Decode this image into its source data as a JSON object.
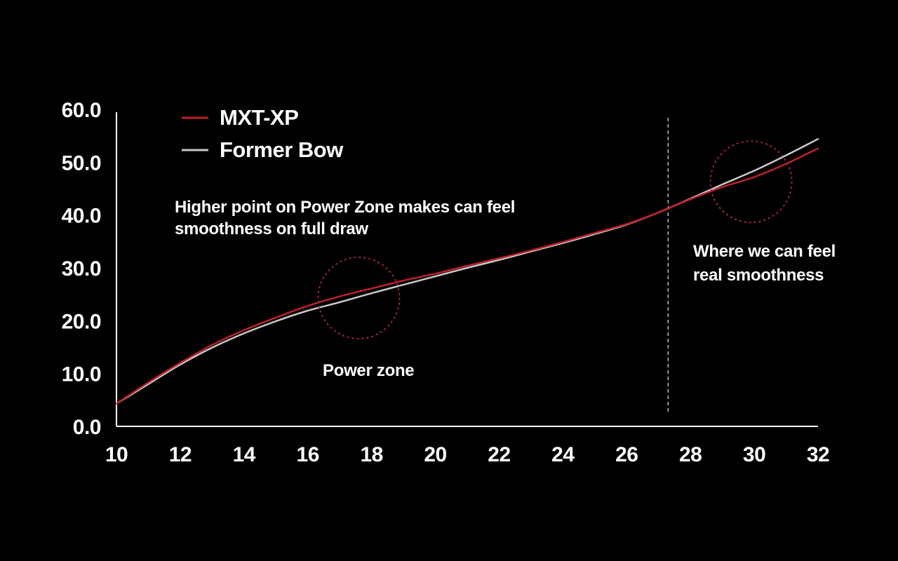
{
  "chart_data": {
    "type": "line",
    "x_ticks": [
      "10",
      "12",
      "14",
      "16",
      "18",
      "20",
      "22",
      "24",
      "26",
      "28",
      "30",
      "32"
    ],
    "y_ticks": [
      "0.0",
      "10.0",
      "20.0",
      "30.0",
      "40.0",
      "50.0",
      "60.0"
    ],
    "xlim": [
      10,
      32
    ],
    "ylim": [
      0,
      60
    ],
    "grid": false,
    "legend_position": "top-left",
    "series": [
      {
        "name": "MXT-XP",
        "color": "#c0202c",
        "x": [
          10,
          11,
          12,
          13,
          14,
          15,
          16,
          17,
          18,
          19,
          20,
          21,
          22,
          23,
          24,
          25,
          26,
          27,
          28,
          29,
          30,
          31,
          32
        ],
        "y": [
          4.3,
          8.3,
          12.0,
          15.4,
          18.2,
          20.6,
          22.8,
          24.6,
          26.1,
          27.6,
          28.9,
          30.4,
          31.8,
          33.3,
          34.9,
          36.6,
          38.3,
          40.5,
          43.0,
          45.3,
          47.2,
          49.7,
          52.6
        ]
      },
      {
        "name": "Former Bow",
        "color": "#c8c8c8",
        "x": [
          10,
          11,
          12,
          13,
          14,
          15,
          16,
          17,
          18,
          19,
          20,
          21,
          22,
          23,
          24,
          25,
          26,
          27,
          28,
          29,
          30,
          31,
          32
        ],
        "y": [
          4.3,
          8.0,
          11.7,
          14.9,
          17.6,
          19.9,
          21.9,
          23.5,
          25.2,
          26.8,
          28.4,
          30.0,
          31.5,
          33.1,
          34.7,
          36.4,
          38.2,
          40.5,
          43.1,
          45.8,
          48.4,
          51.3,
          54.4
        ]
      }
    ],
    "reference_line": {
      "x": 27.3,
      "style": "dashed",
      "color": "#bfbfbf"
    },
    "highlight_circles": [
      {
        "x": 17.6,
        "y": 24.3,
        "color": "#a0205a"
      },
      {
        "x": 29.9,
        "y": 46.3,
        "color": "#a0205a"
      }
    ],
    "annotations": [
      {
        "lines": [
          "Higher point on Power Zone makes can feel",
          "smoothness on full draw"
        ]
      },
      {
        "lines": [
          "Power zone"
        ]
      },
      {
        "lines": [
          "Where we can feel",
          "real smoothness"
        ]
      }
    ]
  }
}
